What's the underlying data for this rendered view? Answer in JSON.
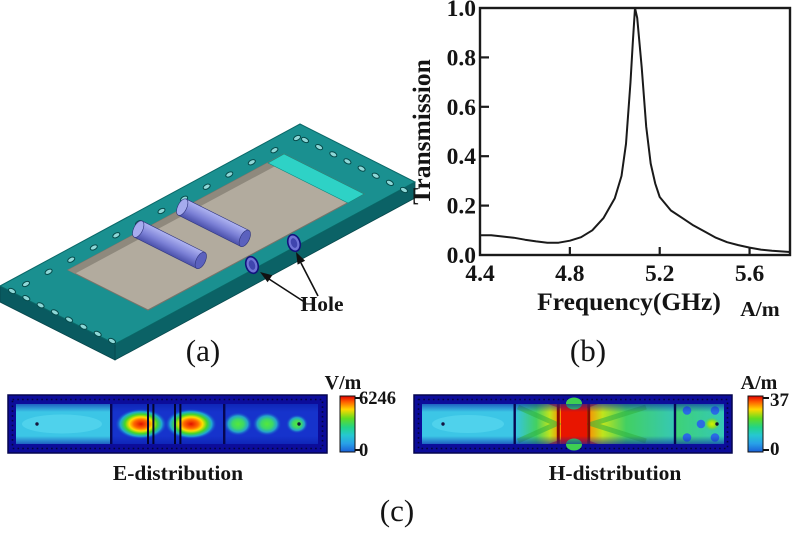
{
  "figure": {
    "background": "#ffffff",
    "type": "three-panel scientific figure"
  },
  "panel_a": {
    "label": "(a)",
    "hole_label": "Hole"
  },
  "panel_b": {
    "label": "(b)",
    "unit_note": "A/m"
  },
  "panel_c": {
    "label": "(c)",
    "e_map": {
      "caption": "E-distribution",
      "colorbar_unit": "V/m",
      "colorbar_max": "6246",
      "colorbar_min": "0"
    },
    "h_map": {
      "caption": "H-distribution",
      "colorbar_unit": "A/m",
      "colorbar_max": "37",
      "colorbar_min": "0"
    }
  },
  "chart_data": {
    "type": "line",
    "title": "",
    "xlabel": "Frequency(GHz)",
    "ylabel": "Transmission",
    "xlim": [
      4.4,
      5.78
    ],
    "ylim": [
      0.0,
      1.0
    ],
    "grid": false,
    "legend": "none",
    "x_tick_values": [
      4.4,
      4.8,
      5.2,
      5.6
    ],
    "x_tick_labels": [
      "4.4",
      "4.8",
      "5.2",
      "5.6"
    ],
    "y_tick_values": [
      0.0,
      0.2,
      0.4,
      0.6,
      0.8,
      1.0
    ],
    "y_tick_labels": [
      "0.0",
      "0.2",
      "0.4",
      "0.6",
      "0.8",
      "1.0"
    ],
    "peak": {
      "frequency_ghz": 5.09,
      "transmission": 1.0
    },
    "series": [
      {
        "name": "transmission",
        "x": [
          4.4,
          4.45,
          4.5,
          4.55,
          4.6,
          4.65,
          4.7,
          4.75,
          4.8,
          4.85,
          4.9,
          4.95,
          5.0,
          5.03,
          5.05,
          5.07,
          5.08,
          5.09,
          5.1,
          5.12,
          5.14,
          5.16,
          5.18,
          5.2,
          5.25,
          5.3,
          5.35,
          5.4,
          5.45,
          5.5,
          5.55,
          5.6,
          5.65,
          5.7,
          5.78
        ],
        "y": [
          0.08,
          0.08,
          0.075,
          0.07,
          0.062,
          0.055,
          0.05,
          0.05,
          0.058,
          0.072,
          0.1,
          0.15,
          0.23,
          0.32,
          0.45,
          0.7,
          0.86,
          1.0,
          0.96,
          0.76,
          0.52,
          0.37,
          0.29,
          0.235,
          0.18,
          0.15,
          0.12,
          0.095,
          0.07,
          0.052,
          0.04,
          0.03,
          0.022,
          0.017,
          0.012
        ]
      }
    ]
  },
  "colors": {
    "board_teal": "#1a9090",
    "board_side_teal": "#0b6266",
    "cavity_gray": "#b2ab9e",
    "cavity_wall_cyan": "#2ed2c6",
    "cylinder_purple": "#7b80d6",
    "map_border_navy": "#0c0c9a",
    "field_cyan": "#3cc6e6",
    "field_blue": "#1633cc",
    "hot_red": "#e81500",
    "curve_color": "#1a1a1a"
  }
}
